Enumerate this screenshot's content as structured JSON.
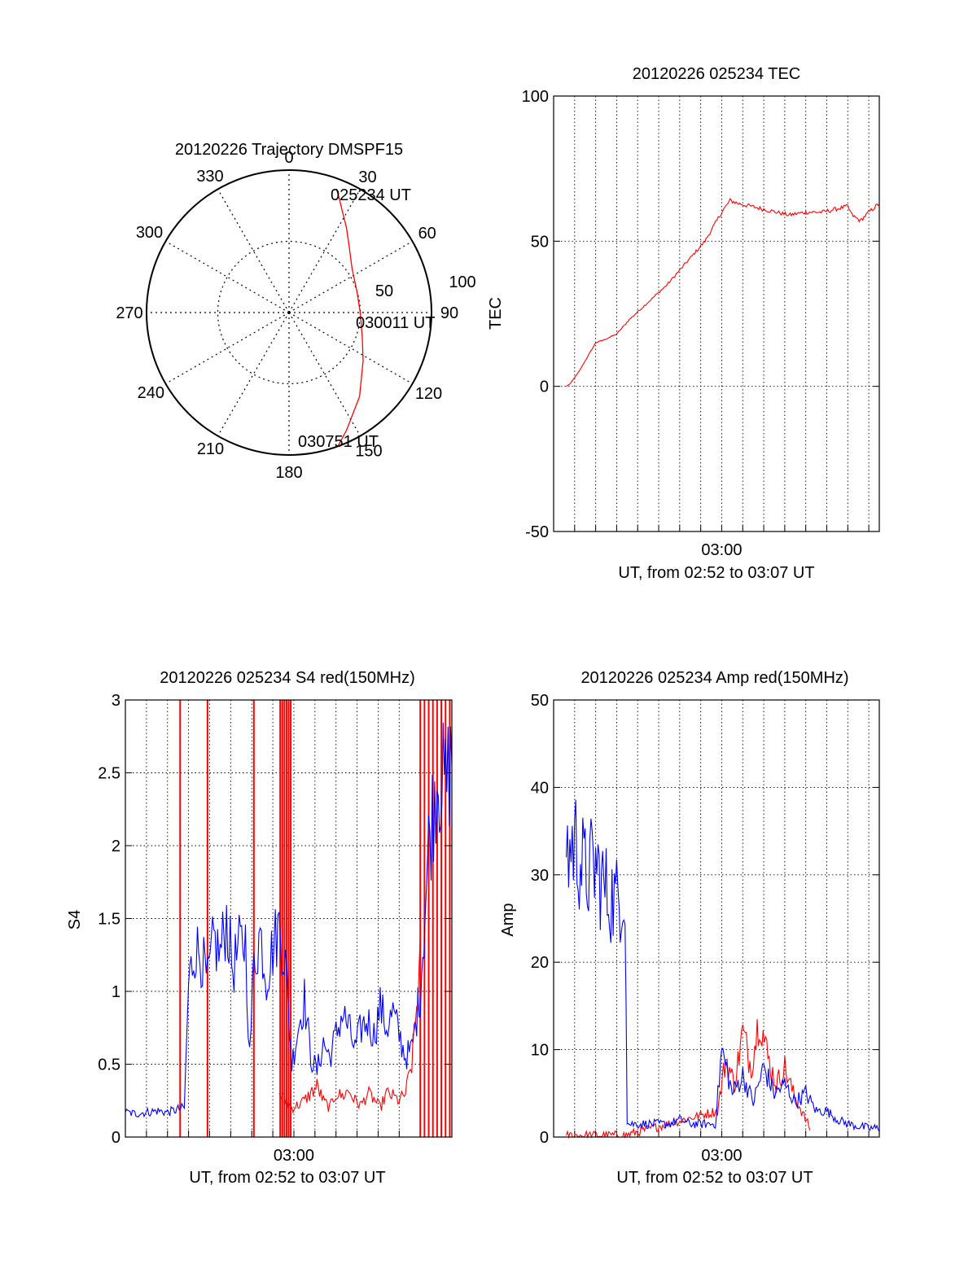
{
  "chart_data": [
    {
      "type": "polar-trajectory",
      "title": "20120226 Trajectory DMSPF15",
      "angle_ticks": [
        0,
        30,
        60,
        90,
        120,
        150,
        180,
        210,
        240,
        270,
        300,
        330
      ],
      "radius_labels": [
        "50",
        "100"
      ],
      "radius_range": [
        0,
        100
      ],
      "grid": true,
      "trajectory_color": "#ff0000",
      "trajectory": {
        "azimuth_deg": [
          21,
          24,
          28,
          34,
          42,
          55,
          72,
          90,
          108,
          123,
          140,
          154,
          160
        ],
        "radius": [
          93,
          87,
          80,
          72,
          63,
          54,
          50,
          50,
          54,
          62,
          77,
          92,
          100
        ]
      },
      "annotations": [
        {
          "text": "025234 UT",
          "azimuth_deg": 21,
          "radius": 93
        },
        {
          "text": "030011 UT",
          "azimuth_deg": 90,
          "radius": 50
        },
        {
          "text": "030751 UT",
          "azimuth_deg": 160,
          "radius": 100
        }
      ]
    },
    {
      "type": "line",
      "title": "20120226 025234 TEC",
      "xlabel": "UT, from 02:52 to 03:07 UT",
      "ylabel": "TEC",
      "xlim": [
        0,
        15.5
      ],
      "ylim": [
        -50,
        100
      ],
      "yticks": [
        -50,
        0,
        50,
        100
      ],
      "xtick_labels": [
        {
          "x": 8,
          "label": "03:00"
        }
      ],
      "grid": true,
      "series": [
        {
          "color": "#ff0000",
          "x": [
            0.6,
            0.8,
            1.2,
            1.6,
            2.0,
            2.4,
            3.0,
            3.6,
            4.2,
            4.8,
            5.4,
            6.0,
            6.6,
            7.2,
            7.6,
            8.0,
            8.4,
            8.8,
            9.4,
            10.0,
            10.6,
            11.2,
            12.0,
            12.8,
            13.4,
            14.0,
            14.2,
            14.6,
            15.0,
            15.5
          ],
          "y": [
            0,
            1,
            5,
            10,
            15,
            16,
            18,
            23,
            27,
            31,
            35,
            40,
            45,
            50,
            55,
            60,
            64,
            63,
            62,
            61,
            60,
            59,
            60,
            60,
            61,
            62,
            59,
            57,
            60,
            63
          ]
        }
      ]
    },
    {
      "type": "line",
      "title": "20120226 025234 S4 red(150MHz)",
      "xlabel": "UT, from 02:52 to 03:07 UT",
      "ylabel": "S4",
      "xlim": [
        0,
        15.5
      ],
      "ylim": [
        0,
        3
      ],
      "yticks": [
        0,
        0.5,
        1,
        1.5,
        2,
        2.5,
        3
      ],
      "ytick_labels": [
        "0",
        "0.5",
        "1",
        "1.5",
        "2",
        "2.5",
        "3"
      ],
      "xtick_labels": [
        {
          "x": 8,
          "label": "03:00"
        }
      ],
      "grid": true,
      "series": [
        {
          "color": "#0000ff",
          "x": [
            0.0,
            0.5,
            1.0,
            1.5,
            2.0,
            2.5,
            2.8,
            3.0,
            3.3,
            3.6,
            3.9,
            4.2,
            4.5,
            4.8,
            5.1,
            5.4,
            5.7,
            5.9,
            6.1,
            6.4,
            6.7,
            7.0,
            7.3,
            7.6,
            7.9,
            8.2,
            8.5,
            8.8,
            9.1,
            9.4,
            9.7,
            10.0,
            10.3,
            10.6,
            10.9,
            11.2,
            11.5,
            11.8,
            12.1,
            12.4,
            12.7,
            13.0,
            13.3,
            13.6,
            14.0,
            14.4,
            14.8,
            15.2,
            15.5
          ],
          "y": [
            0.17,
            0.16,
            0.17,
            0.18,
            0.17,
            0.19,
            0.2,
            1.05,
            1.3,
            1.25,
            1.05,
            1.35,
            1.25,
            1.5,
            1.15,
            1.3,
            1.35,
            0.55,
            1.2,
            1.4,
            1.1,
            1.3,
            1.45,
            1.2,
            0.5,
            0.75,
            0.95,
            0.55,
            0.45,
            0.65,
            0.55,
            0.7,
            0.85,
            0.75,
            0.6,
            0.75,
            0.8,
            0.7,
            0.9,
            0.75,
            0.85,
            0.7,
            0.55,
            0.6,
            1.0,
            2.0,
            2.5,
            2.4,
            2.6
          ]
        },
        {
          "color": "#ff0000",
          "x": [
            7.3,
            7.6,
            7.9,
            8.2,
            8.5,
            8.8,
            9.1,
            9.4,
            9.7,
            10.0,
            10.3,
            10.6,
            10.9,
            11.2,
            11.5,
            11.8,
            12.1,
            12.4,
            12.7,
            13.0,
            13.3,
            13.6,
            14.0
          ],
          "y": [
            0.3,
            0.25,
            0.2,
            0.22,
            0.25,
            0.3,
            0.35,
            0.25,
            0.2,
            0.3,
            0.28,
            0.32,
            0.25,
            0.22,
            0.3,
            0.26,
            0.2,
            0.3,
            0.28,
            0.25,
            0.3,
            0.5,
            1.2
          ]
        }
      ],
      "red_spikes_x": [
        2.6,
        3.9,
        6.1,
        7.35,
        7.45,
        7.55,
        7.65,
        7.75,
        7.85,
        14.0,
        14.2,
        14.4,
        14.6,
        14.8,
        15.0,
        15.2,
        15.4
      ]
    },
    {
      "type": "line",
      "title": "20120226 025234 Amp red(150MHz)",
      "xlabel": "UT, from 02:52 to 03:07 UT",
      "ylabel": "Amp",
      "xlim": [
        0,
        15.5
      ],
      "ylim": [
        0,
        50
      ],
      "yticks": [
        0,
        10,
        20,
        30,
        40,
        50
      ],
      "xtick_labels": [
        {
          "x": 8,
          "label": "03:00"
        }
      ],
      "grid": true,
      "series": [
        {
          "color": "#ff0000",
          "x": [
            0.6,
            1.5,
            2.5,
            3.4,
            7.8,
            8.2,
            8.6,
            9.0,
            9.4,
            9.8,
            10.2,
            10.6,
            11.0,
            11.4,
            11.8,
            12.2
          ],
          "y": [
            0.2,
            0.2,
            0.2,
            0.2,
            3,
            9,
            6,
            12,
            8,
            14,
            9,
            6,
            8,
            5,
            3,
            1
          ]
        },
        {
          "color": "#0000ff",
          "x": [
            0.6,
            1.0,
            1.5,
            2.0,
            2.5,
            3.0,
            3.4,
            3.5,
            4.5,
            5.5,
            6.0,
            6.5,
            7.0,
            7.7,
            8.0,
            8.5,
            9.0,
            9.5,
            10.0,
            10.5,
            11.0,
            11.5,
            12.0,
            12.5,
            13.0,
            13.5,
            14.0,
            15.0,
            15.5
          ],
          "y": [
            32,
            34,
            30,
            31,
            28,
            27,
            29,
            1.5,
            1.5,
            1.5,
            2,
            1.5,
            1.5,
            1.5,
            10,
            5,
            7,
            4,
            8,
            5,
            6,
            4,
            5,
            3,
            3,
            2,
            1.5,
            1,
            1
          ]
        }
      ]
    }
  ]
}
